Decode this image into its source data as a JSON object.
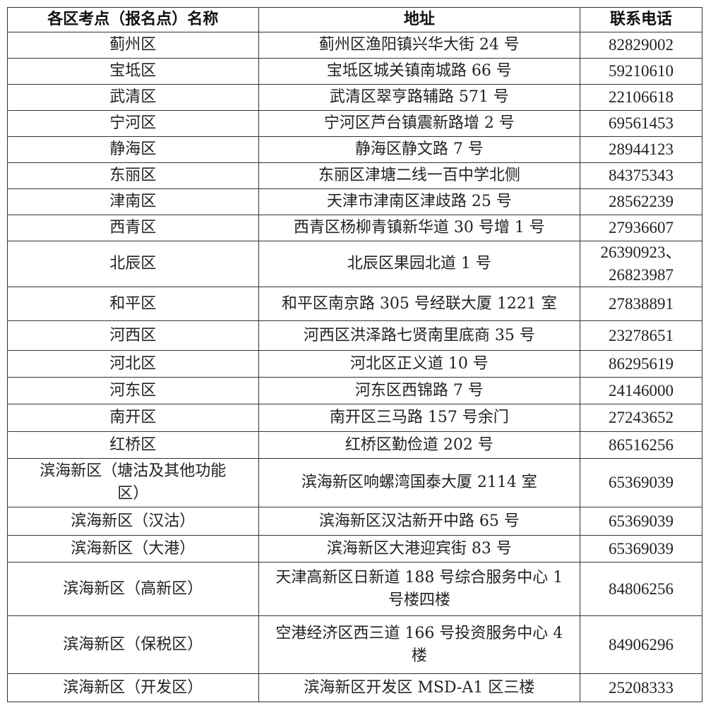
{
  "headers": [
    "各区考点（报名点）名称",
    "地址",
    "联系电话"
  ],
  "rows": [
    [
      "蓟州区",
      "蓟州区渔阳镇兴华大街 24 号",
      "82829002"
    ],
    [
      "宝坻区",
      "宝坻区城关镇南城路 66 号",
      "59210610"
    ],
    [
      "武清区",
      "武清区翠亨路辅路 571 号",
      "22106618"
    ],
    [
      "宁河区",
      "宁河区芦台镇震新路增 2 号",
      "69561453"
    ],
    [
      "静海区",
      "静海区静文路 7 号",
      "28944123"
    ],
    [
      "东丽区",
      "东丽区津塘二线一百中学北侧",
      "84375343"
    ],
    [
      "津南区",
      "天津市津南区津歧路 25 号",
      "28562239"
    ],
    [
      "西青区",
      "西青区杨柳青镇新华道 30 号增 1 号",
      "27936607"
    ],
    [
      "北辰区",
      "北辰区果园北道 1 号",
      "26390923、26823987"
    ],
    [
      "和平区",
      "和平区南京路 305 号经联大厦 1221 室",
      "27838891"
    ],
    [
      "河西区",
      "河西区洪泽路七贤南里底商 35 号",
      "23278651"
    ],
    [
      "河北区",
      "河北区正义道 10 号",
      "86295619"
    ],
    [
      "河东区",
      "河东区西锦路 7 号",
      "24146000"
    ],
    [
      "南开区",
      "南开区三马路 157 号余门",
      "27243652"
    ],
    [
      "红桥区",
      "红桥区勤俭道 202 号",
      "86516256"
    ],
    [
      "滨海新区（塘沽及其他功能区）",
      "滨海新区响螺湾国泰大厦 2114 室",
      "65369039"
    ],
    [
      "滨海新区（汉沽）",
      "滨海新区汉沽新开中路 65 号",
      "65369039"
    ],
    [
      "滨海新区（大港）",
      "滨海新区大港迎宾街 83 号",
      "65369039"
    ],
    [
      "滨海新区（高新区）",
      "天津高新区日新道 188 号综合服务中心 1 号楼四楼",
      "84806256"
    ],
    [
      "滨海新区（保税区）",
      "空港经济区西三道 166 号投资服务中心 4 楼",
      "84906296"
    ],
    [
      "滨海新区（开发区）",
      "滨海新区开发区 MSD-A1 区三楼",
      "25208333"
    ]
  ]
}
